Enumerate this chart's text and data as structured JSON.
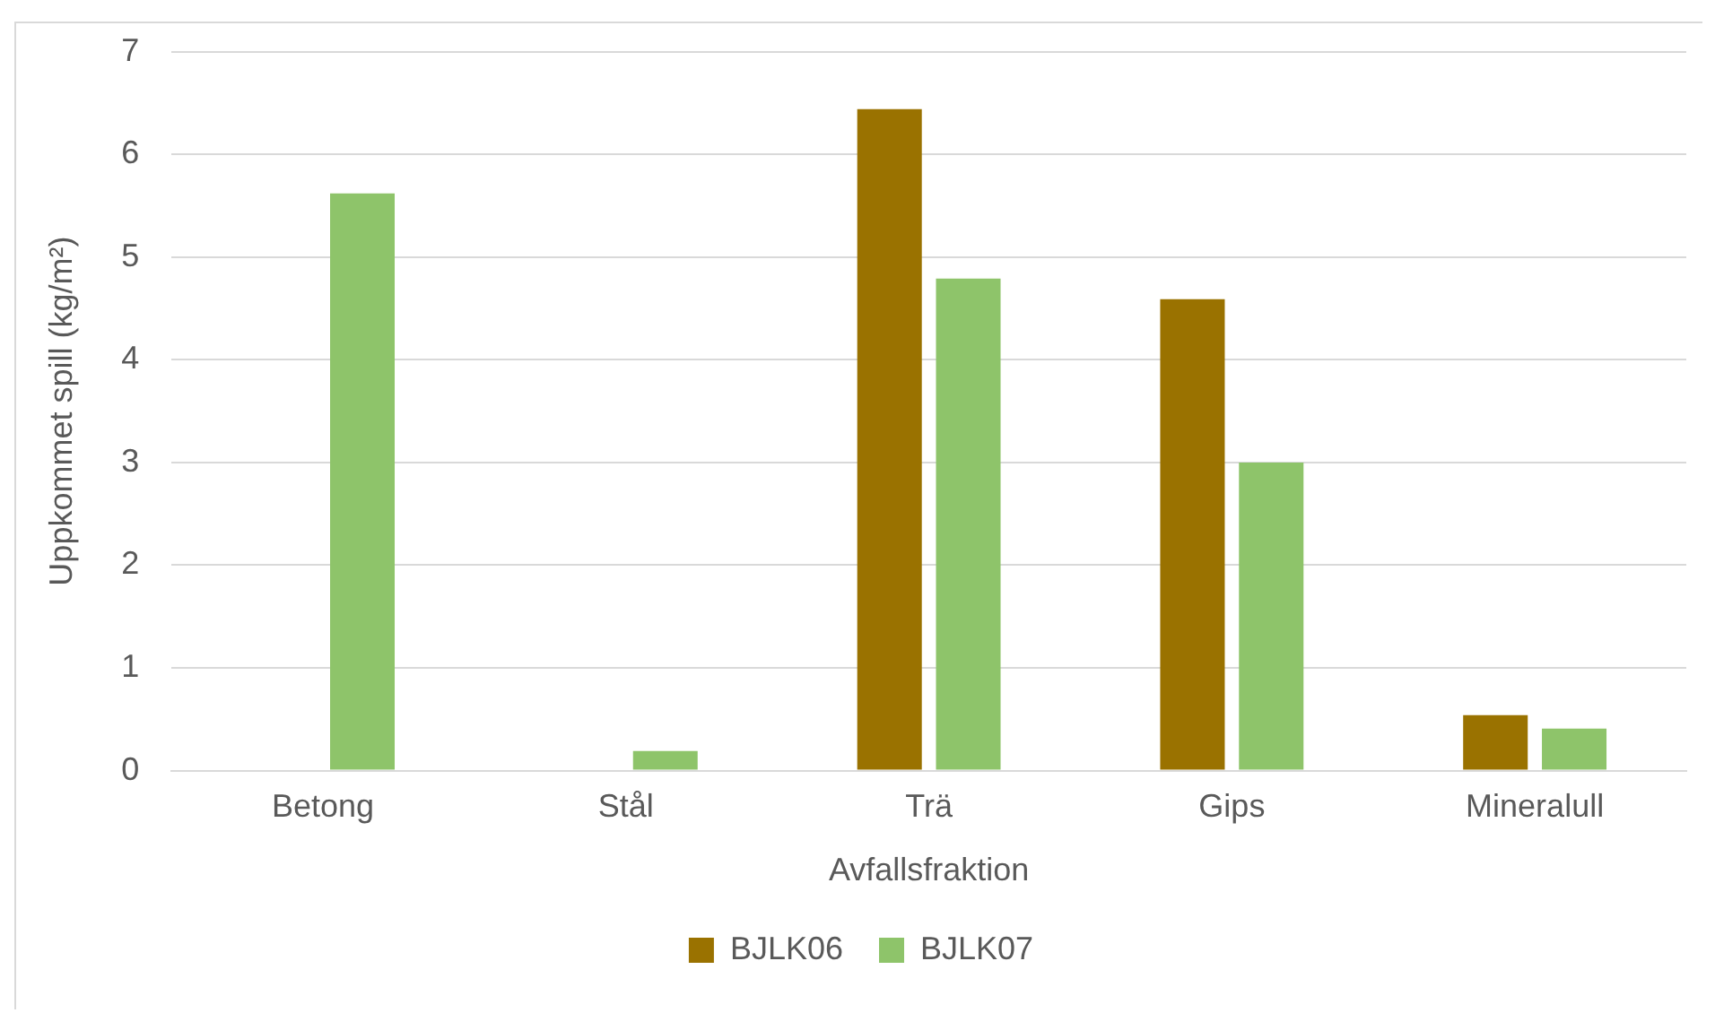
{
  "chart_data": {
    "type": "bar",
    "xlabel": "Avfallsfraktion",
    "ylabel": "Uppkommet spill (kg/m²)",
    "categories": [
      "Betong",
      "Stål",
      "Trä",
      "Gips",
      "Mineralull"
    ],
    "series": [
      {
        "name": "BJLK06",
        "color": "#9a7200",
        "values": [
          null,
          null,
          6.44,
          4.59,
          0.54
        ]
      },
      {
        "name": "BJLK07",
        "color": "#8ec46a",
        "values": [
          5.62,
          0.19,
          4.79,
          3.0,
          0.41
        ]
      }
    ],
    "ylim": [
      0,
      7
    ],
    "yticks": [
      0,
      1,
      2,
      3,
      4,
      5,
      6,
      7
    ],
    "grid": "y",
    "legend": "bottom"
  }
}
